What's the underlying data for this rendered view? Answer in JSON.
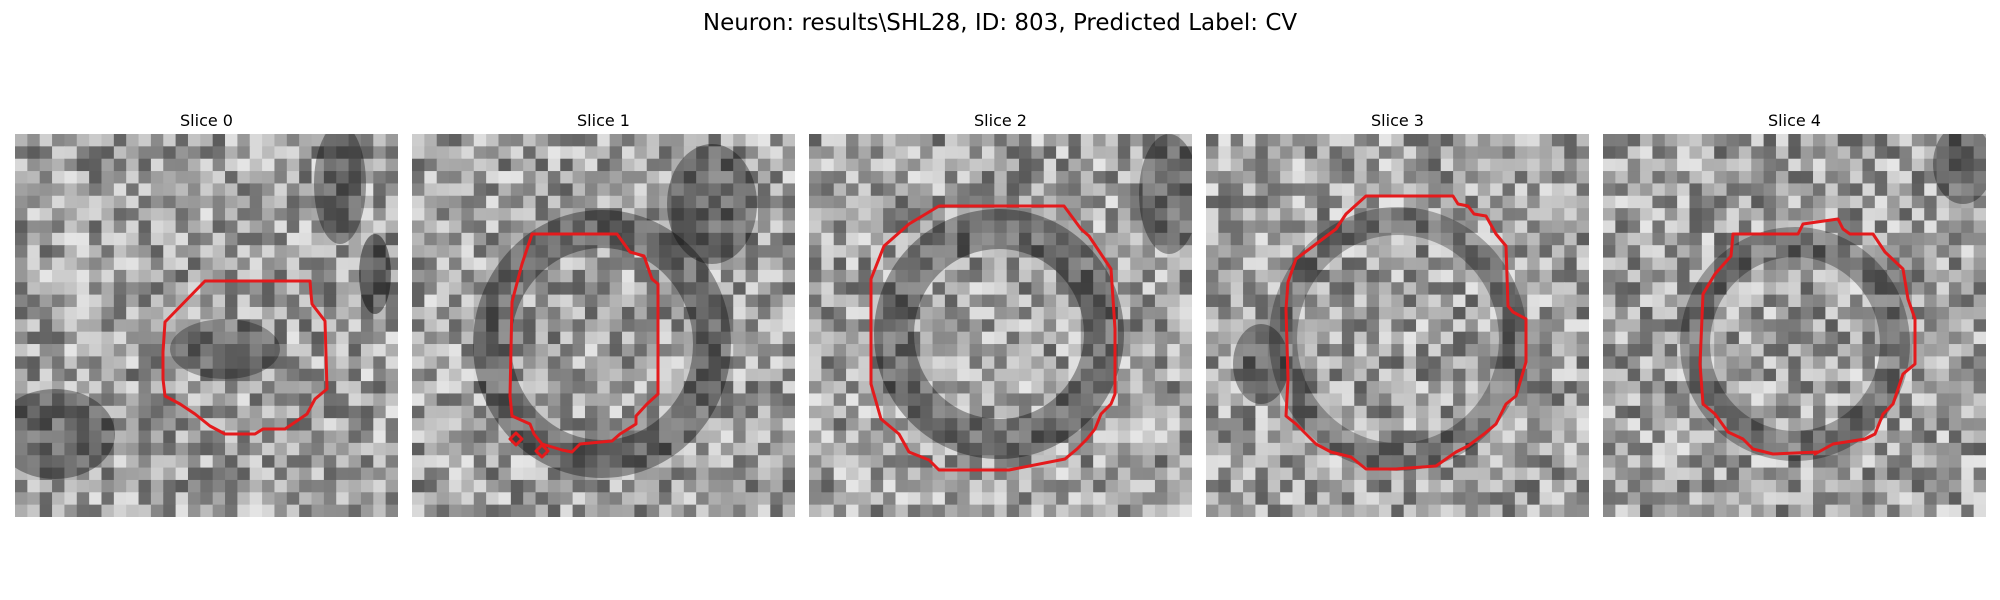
{
  "title": "Neuron: results\\SHL28, ID: 803, Predicted Label: CV",
  "colors": {
    "contour": "#e41a1c"
  },
  "panels": [
    {
      "title": "Slice 0"
    },
    {
      "title": "Slice 1"
    },
    {
      "title": "Slice 2"
    },
    {
      "title": "Slice 3"
    },
    {
      "title": "Slice 4"
    }
  ]
}
